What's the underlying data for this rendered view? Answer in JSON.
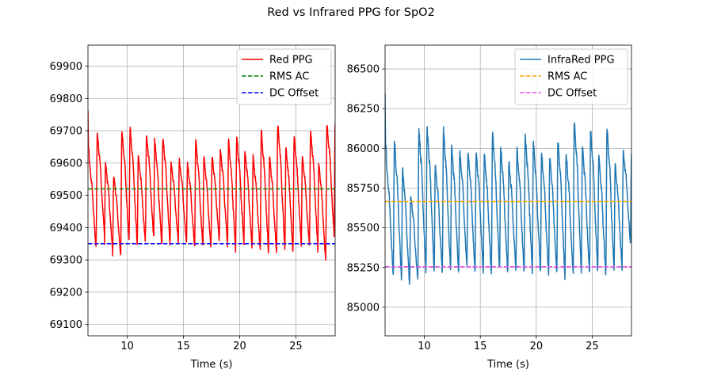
{
  "figure": {
    "suptitle": "Red vs Infrared PPG for SpO2"
  },
  "chart_data": [
    {
      "type": "line",
      "xlabel": "Time (s)",
      "ylabel": "",
      "xlim": [
        6.5,
        28.5
      ],
      "ylim": [
        69065,
        69965
      ],
      "xticks": [
        10,
        15,
        20,
        25
      ],
      "yticks": [
        69100,
        69200,
        69300,
        69400,
        69500,
        69600,
        69700,
        69800,
        69900
      ],
      "grid": true,
      "legend_position": "top-right",
      "series": [
        {
          "name": "Red PPG",
          "kind": "ppg",
          "color": "#ff0000",
          "dash": "solid",
          "waveform": {
            "t_start": 6.5,
            "t_end": 28.5,
            "period": 0.73,
            "initial_peak": 69760,
            "peaks": [
              69610,
              69690,
              69600,
              69560,
              69700,
              69710,
              69620,
              69690,
              69670,
              69680,
              69600,
              69610,
              69600,
              69670,
              69620,
              69620,
              69640,
              69670,
              69680,
              69640,
              69620,
              69700,
              69620,
              69720,
              69650,
              69680,
              69620,
              69700,
              69600,
              69720
            ],
            "troughs": [
              69330,
              69380,
              69330,
              69310,
              69360,
              69350,
              69350,
              69370,
              69340,
              69350,
              69360,
              69350,
              69340,
              69340,
              69330,
              69360,
              69350,
              69330,
              69350,
              69340,
              69330,
              69330,
              69320,
              69340,
              69320,
              69350,
              69340,
              69350,
              69290,
              69380
            ]
          }
        },
        {
          "name": "RMS AC",
          "kind": "hline",
          "value": 69520,
          "color": "#008000",
          "dash": "dashed"
        },
        {
          "name": "DC Offset",
          "kind": "hline",
          "value": 69350,
          "color": "#0000ff",
          "dash": "dashed"
        }
      ]
    },
    {
      "type": "line",
      "xlabel": "Time (s)",
      "ylabel": "",
      "xlim": [
        6.5,
        28.5
      ],
      "ylim": [
        84820,
        86650
      ],
      "xticks": [
        10,
        15,
        20,
        25
      ],
      "yticks": [
        85000,
        85250,
        85500,
        85750,
        86000,
        86250,
        86500
      ],
      "grid": true,
      "legend_position": "top-right",
      "series": [
        {
          "name": "InfraRed PPG",
          "kind": "ppg",
          "color": "#1f77b4",
          "dash": "solid",
          "waveform": {
            "t_start": 6.5,
            "t_end": 28.5,
            "period": 0.73,
            "initial_peak": 86360,
            "peaks": [
              85920,
              86050,
              85880,
              85700,
              86120,
              86130,
              85900,
              86120,
              86010,
              85980,
              85990,
              85980,
              85970,
              86100,
              86010,
              85920,
              85990,
              86080,
              86040,
              85970,
              85950,
              86060,
              85970,
              86180,
              86020,
              86120,
              85950,
              86130,
              85900,
              85980
            ],
            "troughs": [
              85200,
              85180,
              85130,
              85170,
              85220,
              85230,
              85220,
              85230,
              85210,
              85250,
              85220,
              85230,
              85210,
              85240,
              85200,
              85230,
              85220,
              85230,
              85220,
              85200,
              85210,
              85190,
              85200,
              85210,
              85210,
              85220,
              85200,
              85220,
              85230,
              85400
            ]
          }
        },
        {
          "name": "RMS AC",
          "kind": "hline",
          "value": 85665,
          "color": "#ffa500",
          "dash": "dashed"
        },
        {
          "name": "DC Offset",
          "kind": "hline",
          "value": 85255,
          "color": "#ee55ee",
          "dash": "dashed"
        }
      ]
    }
  ]
}
